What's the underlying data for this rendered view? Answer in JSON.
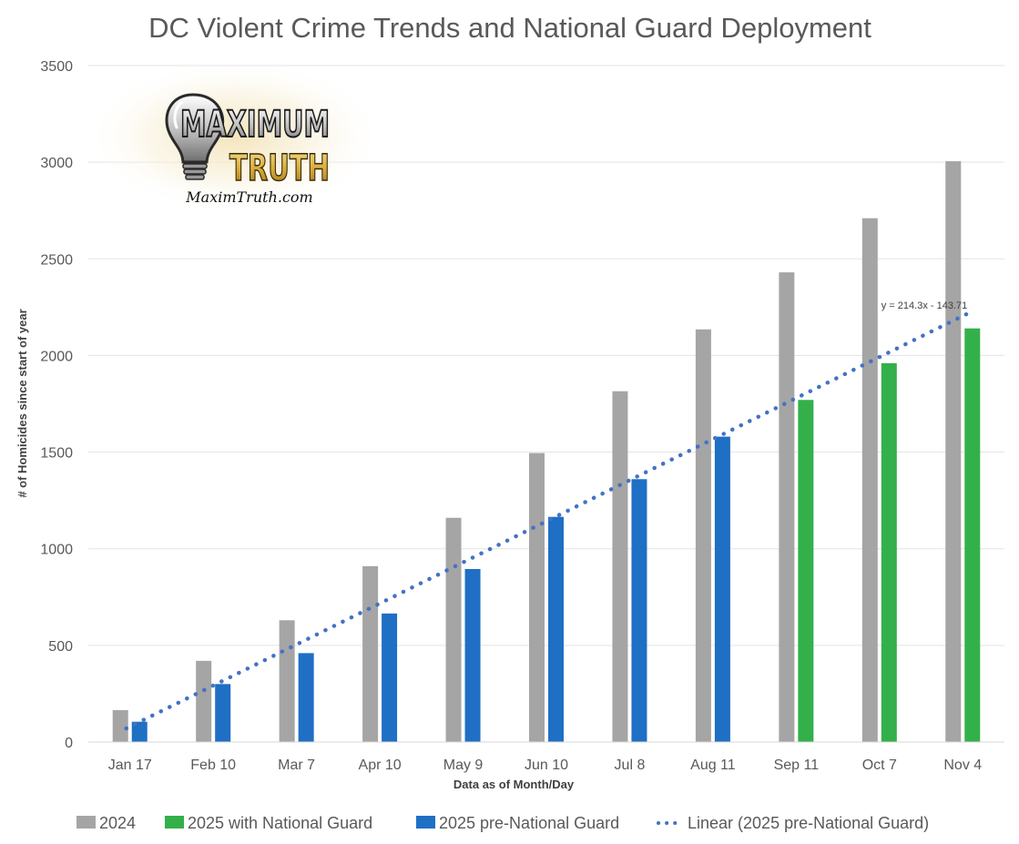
{
  "chart_data": {
    "type": "bar",
    "title": "DC Violent Crime Trends and National Guard Deployment",
    "xlabel": "Data as of Month/Day",
    "ylabel": "# of Homicides since start of year",
    "ylim": [
      0,
      3500
    ],
    "yticks": [
      "0",
      "500",
      "1000",
      "1500",
      "2000",
      "2500",
      "3000",
      "3500"
    ],
    "grid": true,
    "legend_position": "bottom",
    "categories": [
      "Jan 17",
      "Feb 10",
      "Mar 7",
      "Apr 10",
      "May 9",
      "Jun 10",
      "Jul 8",
      "Aug 11",
      "Sep 11",
      "Oct 7",
      "Nov 4"
    ],
    "series": [
      {
        "name": "2024",
        "color": "#a5a5a5",
        "values": [
          165,
          420,
          630,
          910,
          1160,
          1495,
          1815,
          2135,
          2430,
          2710,
          3005
        ]
      },
      {
        "name": "2025 with National Guard",
        "color": "#33b04a",
        "values": [
          null,
          null,
          null,
          null,
          null,
          null,
          null,
          null,
          1770,
          1960,
          2140
        ]
      },
      {
        "name": "2025 pre-National Guard",
        "color": "#1f6fc4",
        "values": [
          105,
          300,
          460,
          665,
          895,
          1165,
          1360,
          1580,
          null,
          null,
          null
        ]
      }
    ],
    "trendline": {
      "name": "Linear (2025 pre-National Guard)",
      "color": "#4472c4",
      "slope": 214.3,
      "intercept": -143.71,
      "equation_label": "y = 214.3x - 143.71"
    }
  },
  "logo": {
    "word_top": "MAXIMUM",
    "word_bottom": "TRUTH",
    "url": "MaximTruth.com",
    "icon": "lightbulb-icon"
  }
}
